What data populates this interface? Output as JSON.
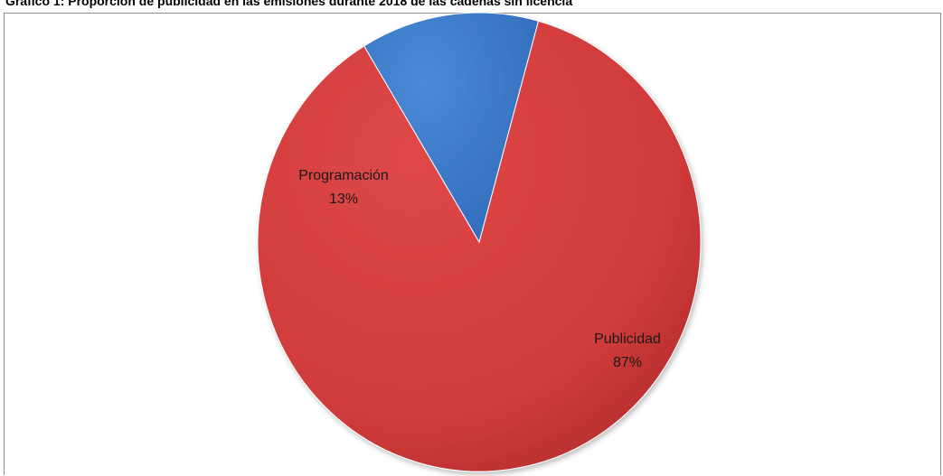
{
  "title": "Gráfico 1: Proporción de publicidad en las emisiones durante 2018 de las cadenas sin licencia",
  "chart_data": {
    "type": "pie",
    "title": "Gráfico 1: Proporción de publicidad en las emisiones durante 2018 de las cadenas sin licencia",
    "slices": [
      {
        "name": "Publicidad",
        "value": 87,
        "label": "87%",
        "color": "#d63b3b"
      },
      {
        "name": "Programación",
        "value": 13,
        "label": "13%",
        "color": "#3f7fcf"
      }
    ],
    "start_angle_deg": 15.5,
    "legend": "none"
  }
}
